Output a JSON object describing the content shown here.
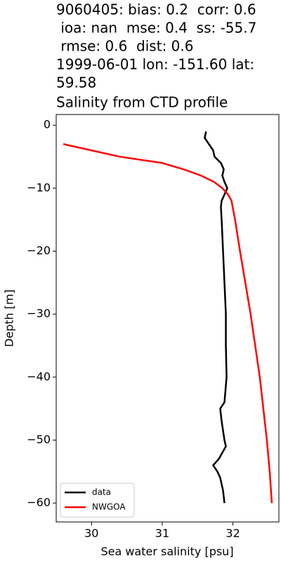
{
  "chart_data": {
    "type": "line",
    "title": [
      "9060405: bias: 0.2  corr: 0.6",
      " ioa: nan  mse: 0.4  ss: -55.7",
      " rmse: 0.6  dist: 0.6",
      "1999-06-01 lon: -151.60 lat:",
      "59.58",
      "Salinity from CTD profile"
    ],
    "x_label": "Sea water salinity [psu]",
    "y_label": "Depth [m]",
    "xlim": [
      29.5,
      32.65
    ],
    "ylim": [
      -63,
      1.7
    ],
    "xticks": [
      30,
      31,
      32
    ],
    "yticks": [
      0,
      {
        "value": -10,
        "label": "−10"
      },
      {
        "value": -20,
        "label": "−20"
      },
      {
        "value": -30,
        "label": "−30"
      },
      {
        "value": -40,
        "label": "−40"
      },
      {
        "value": -50,
        "label": "−50"
      },
      {
        "value": -60,
        "label": "−60"
      }
    ],
    "legend": "lower left",
    "series": [
      {
        "name": "data",
        "color": "#000000",
        "x": [
          31.62,
          31.6,
          31.66,
          31.72,
          31.74,
          31.83,
          31.87,
          31.85,
          31.88,
          31.92,
          31.88,
          31.84,
          31.83,
          31.84,
          31.86,
          31.88,
          31.9,
          31.9,
          31.91,
          31.88,
          31.82,
          31.84,
          31.88,
          31.9,
          31.85,
          31.8,
          31.72,
          31.78,
          31.82,
          31.86,
          31.88
        ],
        "values": [
          -1,
          -2,
          -3,
          -4,
          -5,
          -6,
          -7,
          -8,
          -9,
          -10,
          -11,
          -12,
          -13,
          -15,
          -20,
          -25,
          -30,
          -35,
          -40,
          -44,
          -45,
          -47,
          -50,
          -51,
          -52,
          -53,
          -54,
          -55,
          -56,
          -58,
          -60
        ]
      },
      {
        "name": "NWGOA",
        "color": "#ff0000",
        "x": [
          29.6,
          30.0,
          30.4,
          31.0,
          31.3,
          31.55,
          31.73,
          31.85,
          31.93,
          31.98,
          32.03,
          32.1,
          32.25,
          32.38,
          32.48,
          32.52,
          32.55
        ],
        "values": [
          -3,
          -4,
          -5,
          -6,
          -7,
          -8,
          -9,
          -10,
          -11,
          -12,
          -15,
          -20,
          -30,
          -40,
          -50,
          -55,
          -60
        ]
      }
    ]
  }
}
